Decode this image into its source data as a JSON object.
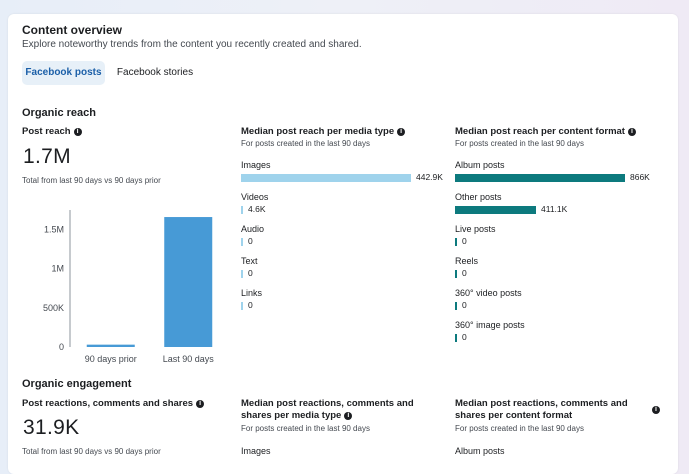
{
  "header": {
    "title": "Content overview",
    "subtitle": "Explore noteworthy trends from the content you recently created and shared."
  },
  "tabs": [
    {
      "label": "Facebook posts",
      "active": true
    },
    {
      "label": "Facebook stories",
      "active": false
    }
  ],
  "colors": {
    "media_bar": "#9fd3ec",
    "format_bar": "#0d7a7e",
    "chart_bar": "#479ad6",
    "active_tab_bg": "#e7f0f8",
    "active_tab_text": "#1b5fa8"
  },
  "organic_reach": {
    "section_title": "Organic reach",
    "post_reach": {
      "label": "Post reach",
      "value": "1.7M",
      "note": "Total from last 90 days vs 90 days prior"
    },
    "media_type": {
      "title": "Median post reach per media type",
      "subtitle": "For posts created in the last 90 days",
      "items": [
        {
          "label": "Images",
          "value": "442.9K",
          "amount": 442.9
        },
        {
          "label": "Videos",
          "value": "4.6K",
          "amount": 4.6
        },
        {
          "label": "Audio",
          "value": "0",
          "amount": 0
        },
        {
          "label": "Text",
          "value": "0",
          "amount": 0
        },
        {
          "label": "Links",
          "value": "0",
          "amount": 0
        }
      ]
    },
    "content_format": {
      "title": "Median post reach per content format",
      "subtitle": "For posts created in the last 90 days",
      "items": [
        {
          "label": "Album posts",
          "value": "866K",
          "amount": 866
        },
        {
          "label": "Other posts",
          "value": "411.1K",
          "amount": 411.1
        },
        {
          "label": "Live posts",
          "value": "0",
          "amount": 0
        },
        {
          "label": "Reels",
          "value": "0",
          "amount": 0
        },
        {
          "label": "360° video posts",
          "value": "0",
          "amount": 0
        },
        {
          "label": "360° image posts",
          "value": "0",
          "amount": 0
        }
      ]
    }
  },
  "chart_data": {
    "type": "bar",
    "categories": [
      "90 days prior",
      "Last 90 days"
    ],
    "values": [
      30000,
      1660000
    ],
    "ylim": [
      0,
      1750000
    ],
    "yticks": [
      0,
      500000,
      1000000,
      1500000
    ],
    "ytick_labels": [
      "0",
      "500K",
      "1M",
      "1.5M"
    ],
    "title": "",
    "xlabel": "",
    "ylabel": ""
  },
  "organic_engagement": {
    "section_title": "Organic engagement",
    "reactions": {
      "label": "Post reactions, comments and shares",
      "value": "31.9K",
      "note": "Total from last 90 days vs 90 days prior"
    },
    "media_type": {
      "title": "Median post reactions, comments and shares per media type",
      "subtitle": "For posts created in the last 90 days",
      "first_item": "Images"
    },
    "content_format": {
      "title": "Median post reactions, comments and shares per content format",
      "subtitle": "For posts created in the last 90 days",
      "first_item": "Album posts"
    }
  }
}
